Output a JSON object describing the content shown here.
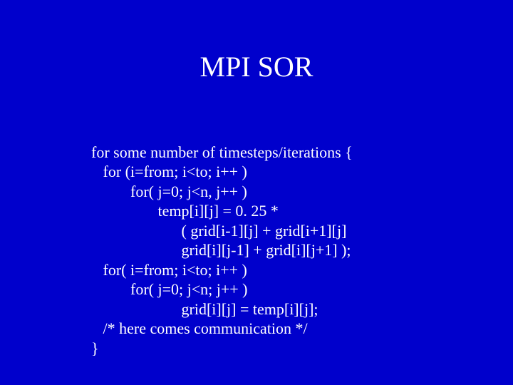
{
  "slide": {
    "title": "MPI SOR",
    "lines": {
      "l0": "for some number of timesteps/iterations {",
      "l1": "   for (i=from; i<to; i++ )",
      "l2": "          for( j=0; j<n, j++ )",
      "l3": "                 temp[i][j] = 0. 25 *",
      "l4": "                       ( grid[i-1][j] + grid[i+1][j]",
      "l5": "                       grid[i][j-1] + grid[i][j+1] );",
      "l6": "   for( i=from; i<to; i++ )",
      "l7": "          for( j=0; j<n; j++ )",
      "l8": "                       grid[i][j] = temp[i][j];",
      "l9": "   /* here comes communication */",
      "l10": "}"
    }
  },
  "colors": {
    "background": "#0000cc",
    "text": "#ffffff"
  },
  "typography": {
    "title_fontsize": 40,
    "body_fontsize": 22,
    "font_family": "Times New Roman"
  }
}
